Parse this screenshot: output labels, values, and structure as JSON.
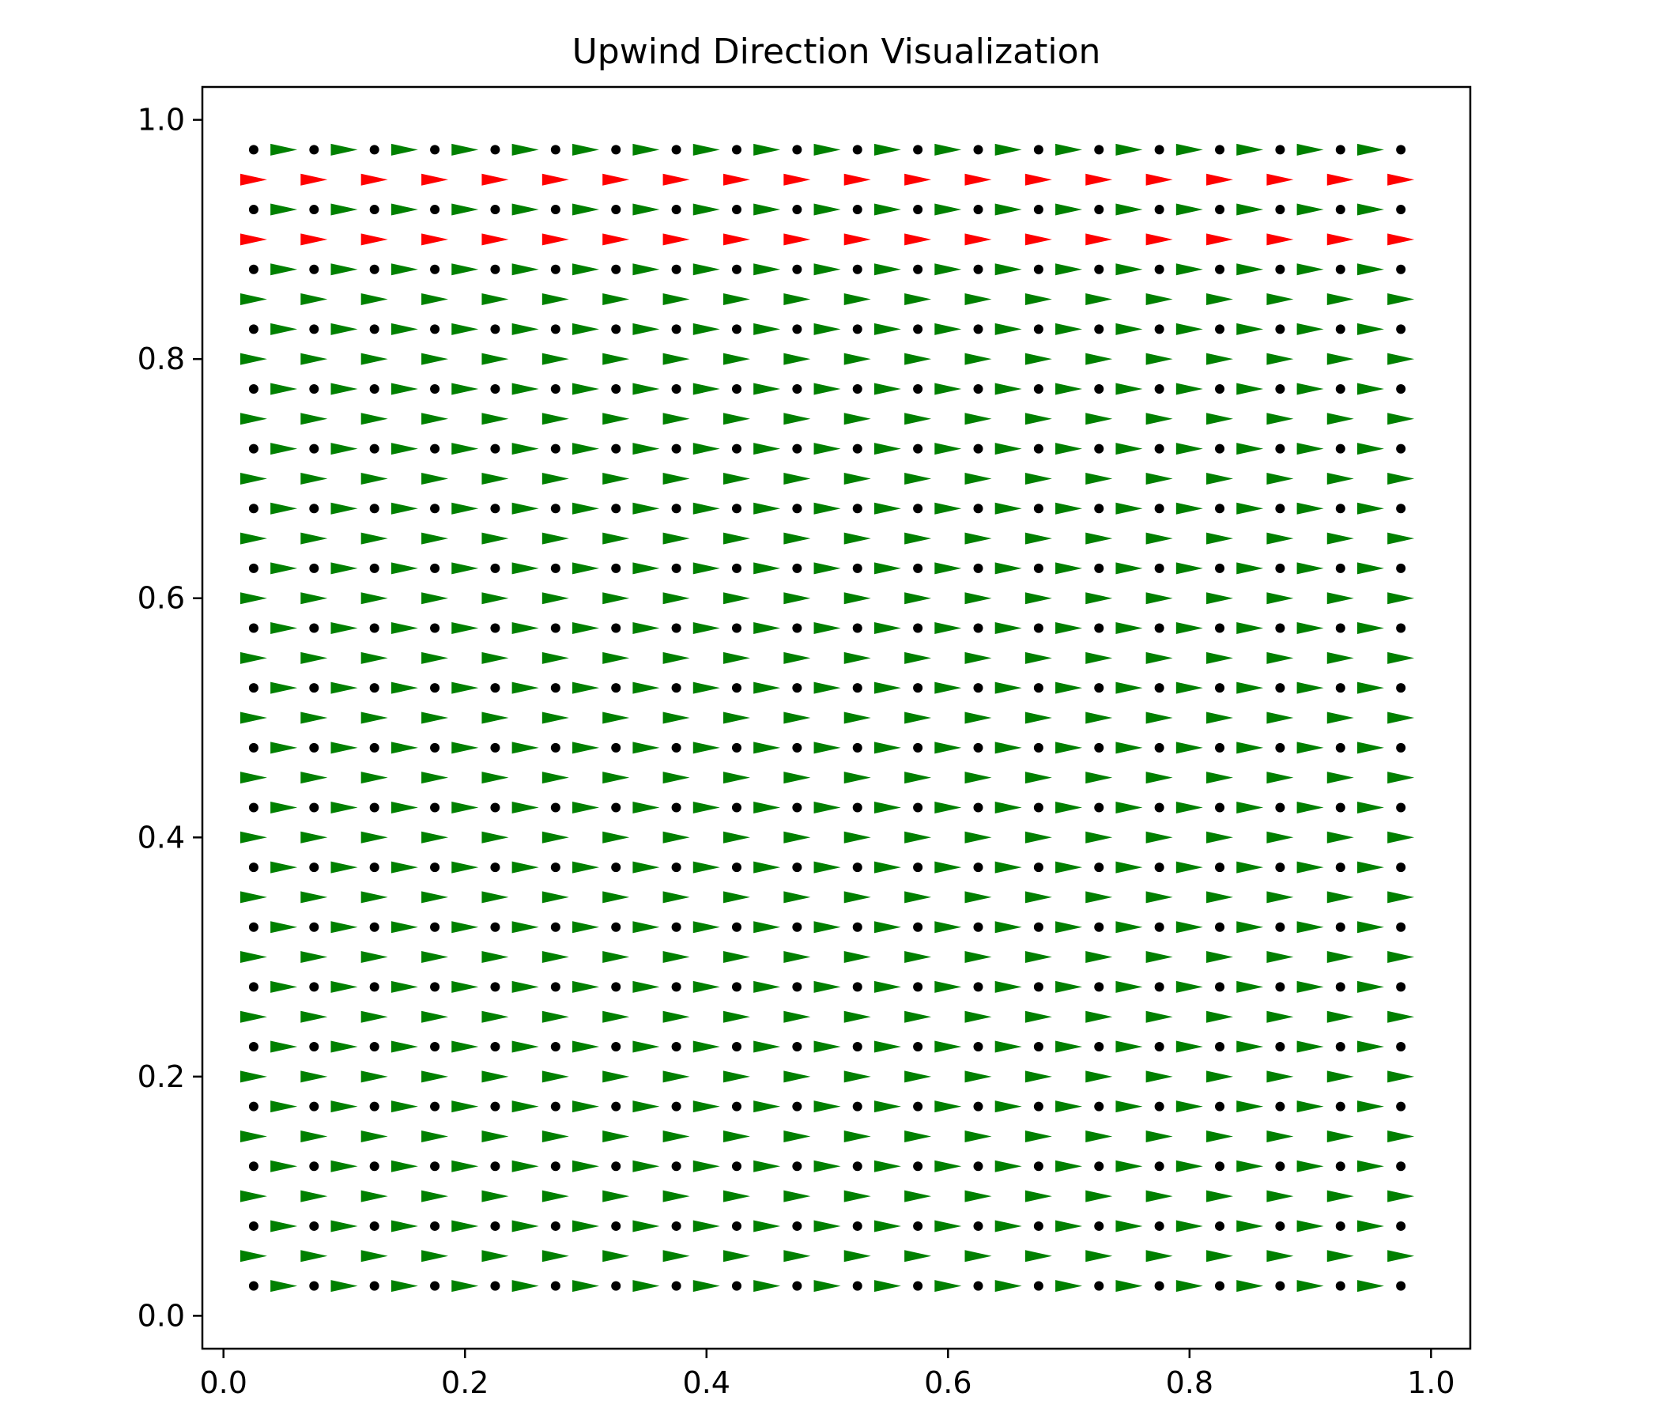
{
  "chart_data": {
    "type": "scatter",
    "title": "Upwind Direction Visualization",
    "xlabel": "",
    "ylabel": "",
    "xlim": [
      -0.0175,
      1.0325
    ],
    "ylim": [
      -0.0275,
      1.0275
    ],
    "x_ticks": [
      0.0,
      0.2,
      0.4,
      0.6,
      0.8,
      1.0
    ],
    "x_tick_labels": [
      "0.0",
      "0.2",
      "0.4",
      "0.6",
      "0.8",
      "1.0"
    ],
    "y_ticks": [
      0.0,
      0.2,
      0.4,
      0.6,
      0.8,
      1.0
    ],
    "y_tick_labels": [
      "0.0",
      "0.2",
      "0.4",
      "0.6",
      "0.8",
      "1.0"
    ],
    "grid": false,
    "series": [
      {
        "kind": "points",
        "color": "#000000",
        "x_start": 0.025,
        "x_end": 0.975,
        "x_step": 0.05,
        "y_start": 0.025,
        "y_end": 0.975,
        "y_step": 0.05
      },
      {
        "kind": "arrows",
        "direction": "+x",
        "color": "#008000",
        "x_start": 0.05,
        "x_end": 0.95,
        "x_step": 0.05,
        "y_values": [
          0.025,
          0.075,
          0.125,
          0.175,
          0.225,
          0.275,
          0.325,
          0.375,
          0.425,
          0.475,
          0.525,
          0.575,
          0.625,
          0.675,
          0.725,
          0.775,
          0.825,
          0.875,
          0.925,
          0.975
        ]
      },
      {
        "kind": "arrows",
        "direction": "+x",
        "color": "#008000",
        "x_start": 0.025,
        "x_end": 0.975,
        "x_step": 0.05,
        "y_values": [
          0.05,
          0.1,
          0.15,
          0.2,
          0.25,
          0.3,
          0.35,
          0.4,
          0.45,
          0.5,
          0.55,
          0.6,
          0.65,
          0.7,
          0.75,
          0.8,
          0.85
        ]
      },
      {
        "kind": "arrows",
        "direction": "+x",
        "color": "#ff0000",
        "x_start": 0.025,
        "x_end": 0.975,
        "x_step": 0.05,
        "y_values": [
          0.9,
          0.95
        ]
      }
    ]
  }
}
